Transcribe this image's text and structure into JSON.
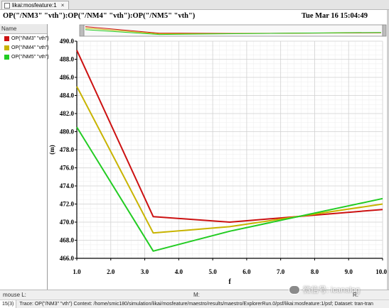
{
  "window": {
    "tab_label": "likai:mosfeature:1",
    "tab_close": "×",
    "plot_title": "OP(\"/NM3\" \"vth\"):OP(\"/NM4\" \"vth\"):OP(\"/NM5\" \"vth\")",
    "datetime": "Tue Mar 16 15:04:49"
  },
  "left_panel": {
    "header": "Name",
    "legend": [
      {
        "label": "OP(\"/NM3\" \"vth\")",
        "color": "#cc1111"
      },
      {
        "label": "OP(\"/NM4\" \"vth\")",
        "color": "#c8b400"
      },
      {
        "label": "OP(\"/NM5\" \"vth\")",
        "color": "#22cc22"
      }
    ]
  },
  "status_bar": {
    "mouse_l": "mouse L:",
    "mouse_m": "M:",
    "mouse_r": "R:",
    "count": "15(3)",
    "trace_info": "Trace: OP(\"/NM3\" \"vth\")  Context: /home/smic180/simulation/likai/mosfeature/maestro/results/maestro/ExplorerRun.0/psf/likai:mosfeature:1/psf; Dataset: tran-tran"
  },
  "watermark": {
    "text": "微信号: icanalog"
  },
  "chart_data": {
    "type": "line",
    "title": "OP(\"/NM3\" \"vth\"):OP(\"/NM4\" \"vth\"):OP(\"/NM5\" \"vth\")",
    "xlabel": "f",
    "ylabel": "(m)",
    "xlim": [
      1.0,
      10.0
    ],
    "ylim": [
      466.0,
      490.0
    ],
    "xticks": [
      "1.0",
      "2.0",
      "3.0",
      "4.0",
      "5.0",
      "6.0",
      "7.0",
      "8.0",
      "9.0",
      "10.0"
    ],
    "yticks": [
      "466.0",
      "468.0",
      "470.0",
      "472.0",
      "474.0",
      "476.0",
      "478.0",
      "480.0",
      "482.0",
      "484.0",
      "486.0",
      "488.0",
      "490.0"
    ],
    "x": [
      1.0,
      3.25,
      5.5,
      10.0
    ],
    "grid": true,
    "series": [
      {
        "name": "OP(\"/NM3\" \"vth\")",
        "color": "#cc1111",
        "values": [
          489.0,
          470.6,
          470.0,
          471.4
        ]
      },
      {
        "name": "OP(\"/NM4\" \"vth\")",
        "color": "#c8b400",
        "values": [
          485.0,
          468.8,
          469.5,
          472.0
        ]
      },
      {
        "name": "OP(\"/NM5\" \"vth\")",
        "color": "#22cc22",
        "values": [
          480.5,
          466.8,
          469.0,
          472.6
        ]
      }
    ]
  }
}
